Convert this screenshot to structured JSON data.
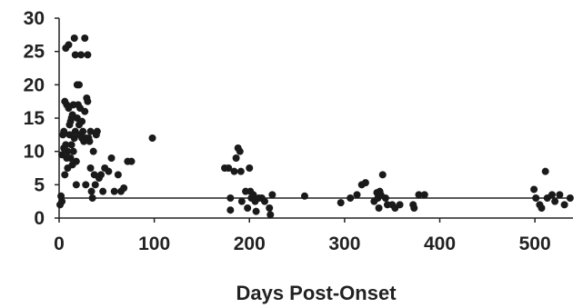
{
  "chart_data": {
    "type": "scatter",
    "title": "",
    "xlabel": "Days Post-Onset",
    "ylabel": "",
    "xlim": [
      0,
      540
    ],
    "ylim": [
      0,
      30
    ],
    "xticks": [
      0,
      100,
      200,
      300,
      400,
      500
    ],
    "yticks": [
      0,
      5,
      10,
      15,
      20,
      25,
      30
    ],
    "xtick_labels": [
      "0",
      "100",
      "200",
      "300",
      "400",
      "500"
    ],
    "ytick_labels": [
      "0",
      "5",
      "10",
      "15",
      "20",
      "25",
      "30"
    ],
    "reference_line_y": 3,
    "grid": false,
    "legend": "none",
    "marker_color": "#1a1a1a",
    "series": [
      {
        "points": [
          [
            1,
            2
          ],
          [
            2,
            3.3
          ],
          [
            3,
            2.5
          ],
          [
            3,
            9.5
          ],
          [
            4,
            12.5
          ],
          [
            5,
            10.5
          ],
          [
            5,
            13
          ],
          [
            6,
            17.5
          ],
          [
            6,
            6.5
          ],
          [
            7,
            25.5
          ],
          [
            7,
            11
          ],
          [
            8,
            17
          ],
          [
            8,
            9
          ],
          [
            9,
            10
          ],
          [
            9,
            7.5
          ],
          [
            10,
            26
          ],
          [
            10,
            16.5
          ],
          [
            11,
            14
          ],
          [
            11,
            12.5
          ],
          [
            12,
            14.5
          ],
          [
            12,
            9
          ],
          [
            13,
            15
          ],
          [
            13,
            11
          ],
          [
            14,
            15.5
          ],
          [
            14,
            8
          ],
          [
            15,
            17
          ],
          [
            15,
            10
          ],
          [
            16,
            27
          ],
          [
            16,
            12
          ],
          [
            17,
            24.5
          ],
          [
            17,
            13
          ],
          [
            18,
            5
          ],
          [
            18,
            8.5
          ],
          [
            19,
            20
          ],
          [
            19,
            15
          ],
          [
            20,
            17
          ],
          [
            21,
            20
          ],
          [
            21,
            14
          ],
          [
            22,
            16.5
          ],
          [
            22,
            12.5
          ],
          [
            23,
            24.5
          ],
          [
            24,
            14.5
          ],
          [
            24,
            12
          ],
          [
            25,
            13
          ],
          [
            26,
            11.5
          ],
          [
            27,
            27
          ],
          [
            27,
            16
          ],
          [
            28,
            5
          ],
          [
            28,
            12
          ],
          [
            29,
            18
          ],
          [
            30,
            24.5
          ],
          [
            30,
            17.5
          ],
          [
            31,
            12
          ],
          [
            32,
            11.5
          ],
          [
            33,
            13
          ],
          [
            33,
            7.5
          ],
          [
            34,
            4
          ],
          [
            35,
            3
          ],
          [
            36,
            10
          ],
          [
            37,
            6.5
          ],
          [
            38,
            5
          ],
          [
            39,
            12.5
          ],
          [
            40,
            13
          ],
          [
            42,
            6
          ],
          [
            44,
            6.5
          ],
          [
            46,
            4
          ],
          [
            48,
            7.5
          ],
          [
            52,
            7
          ],
          [
            55,
            9
          ],
          [
            58,
            4
          ],
          [
            62,
            6.5
          ],
          [
            65,
            4
          ],
          [
            68,
            4.5
          ],
          [
            72,
            8.5
          ],
          [
            76,
            8.5
          ],
          [
            98,
            12
          ],
          [
            174,
            7.5
          ],
          [
            178,
            7.5
          ],
          [
            180,
            3
          ],
          [
            180,
            1.2
          ],
          [
            184,
            7
          ],
          [
            186,
            9
          ],
          [
            188,
            10.5
          ],
          [
            190,
            10
          ],
          [
            191,
            7
          ],
          [
            192,
            2.5
          ],
          [
            196,
            4
          ],
          [
            198,
            1.5
          ],
          [
            200,
            7.5
          ],
          [
            201,
            4
          ],
          [
            202,
            3
          ],
          [
            204,
            3.5
          ],
          [
            206,
            2.5
          ],
          [
            207,
            1
          ],
          [
            210,
            3
          ],
          [
            213,
            3
          ],
          [
            216,
            2.5
          ],
          [
            221,
            1.5
          ],
          [
            222,
            0.5
          ],
          [
            224,
            3.5
          ],
          [
            258,
            3.3
          ],
          [
            296,
            2.3
          ],
          [
            306,
            3
          ],
          [
            313,
            3.5
          ],
          [
            318,
            5
          ],
          [
            322,
            5.3
          ],
          [
            331,
            2.5
          ],
          [
            334,
            3.8
          ],
          [
            335,
            3
          ],
          [
            336,
            1.5
          ],
          [
            337,
            4
          ],
          [
            338,
            3.5
          ],
          [
            340,
            6.5
          ],
          [
            343,
            3
          ],
          [
            345,
            2
          ],
          [
            350,
            2
          ],
          [
            353,
            1.5
          ],
          [
            358,
            2
          ],
          [
            372,
            2
          ],
          [
            373,
            1.5
          ],
          [
            378,
            3.5
          ],
          [
            384,
            3.5
          ],
          [
            499,
            4.3
          ],
          [
            501,
            3
          ],
          [
            505,
            2
          ],
          [
            507,
            1.5
          ],
          [
            511,
            7
          ],
          [
            513,
            3
          ],
          [
            518,
            3.5
          ],
          [
            521,
            2.5
          ],
          [
            526,
            3.5
          ],
          [
            531,
            2
          ],
          [
            537,
            3
          ]
        ]
      }
    ]
  }
}
